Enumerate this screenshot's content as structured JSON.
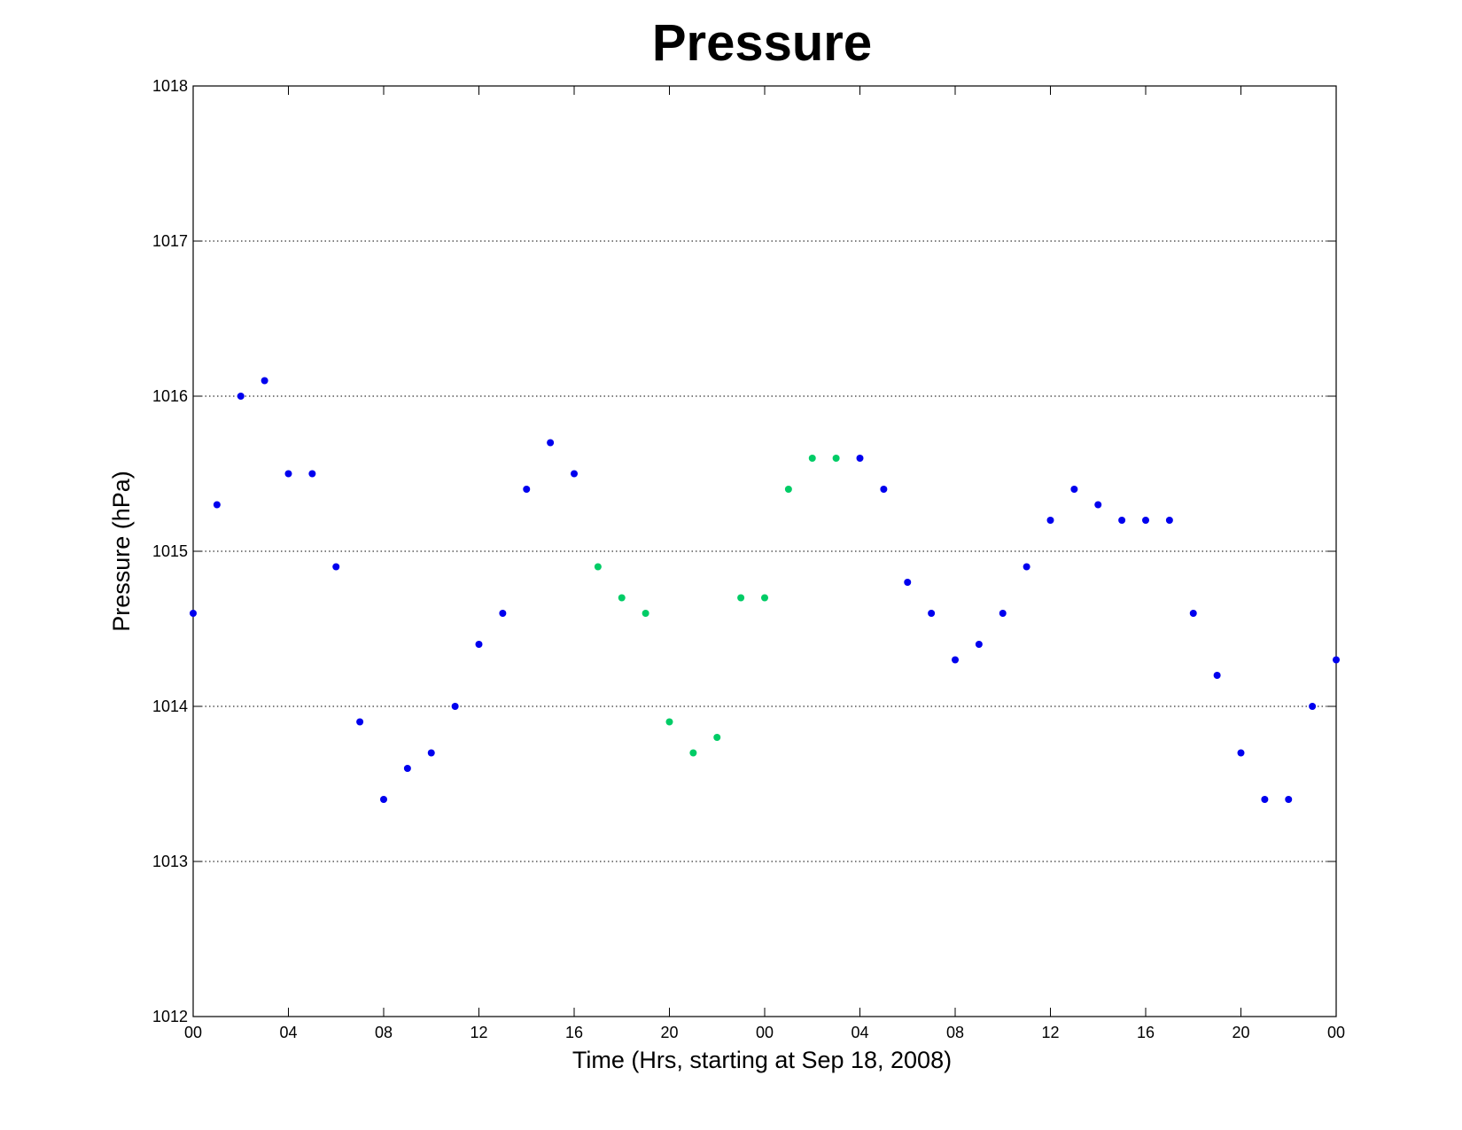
{
  "chart_data": {
    "type": "scatter",
    "title": "Pressure",
    "xlabel": "Time (Hrs, starting at Sep 18, 2008)",
    "ylabel": "Pressure (hPa)",
    "xlim": [
      "2008-09-18 00:00",
      "2008-09-20 00:00"
    ],
    "ylim": [
      1012,
      1018
    ],
    "x_ticks": [
      "00",
      "04",
      "08",
      "12",
      "16",
      "20",
      "00",
      "04",
      "08",
      "12",
      "16",
      "20",
      "00"
    ],
    "y_ticks": [
      "1012",
      "1013",
      "1014",
      "1015",
      "1016",
      "1017",
      "1018"
    ],
    "grid": "horizontal dotted",
    "colors": {
      "blue": "#0000ee",
      "green": "#00cc66"
    },
    "points": [
      {
        "x": "2008-09-18 00:00",
        "y": 1014.6,
        "color": "blue"
      },
      {
        "x": "2008-09-18 01:00",
        "y": 1015.3,
        "color": "blue"
      },
      {
        "x": "2008-09-18 02:00",
        "y": 1016.0,
        "color": "blue"
      },
      {
        "x": "2008-09-18 03:00",
        "y": 1016.1,
        "color": "blue"
      },
      {
        "x": "2008-09-18 04:00",
        "y": 1015.5,
        "color": "blue"
      },
      {
        "x": "2008-09-18 05:00",
        "y": 1015.5,
        "color": "blue"
      },
      {
        "x": "2008-09-18 06:00",
        "y": 1014.9,
        "color": "blue"
      },
      {
        "x": "2008-09-18 07:00",
        "y": 1013.9,
        "color": "blue"
      },
      {
        "x": "2008-09-18 08:00",
        "y": 1013.4,
        "color": "blue"
      },
      {
        "x": "2008-09-18 09:00",
        "y": 1013.6,
        "color": "blue"
      },
      {
        "x": "2008-09-18 10:00",
        "y": 1013.7,
        "color": "blue"
      },
      {
        "x": "2008-09-18 11:00",
        "y": 1014.0,
        "color": "blue"
      },
      {
        "x": "2008-09-18 12:00",
        "y": 1014.4,
        "color": "blue"
      },
      {
        "x": "2008-09-18 13:00",
        "y": 1014.6,
        "color": "blue"
      },
      {
        "x": "2008-09-18 14:00",
        "y": 1015.4,
        "color": "blue"
      },
      {
        "x": "2008-09-18 15:00",
        "y": 1015.7,
        "color": "blue"
      },
      {
        "x": "2008-09-18 16:00",
        "y": 1015.5,
        "color": "blue"
      },
      {
        "x": "2008-09-18 17:00",
        "y": 1014.9,
        "color": "green"
      },
      {
        "x": "2008-09-18 18:00",
        "y": 1014.7,
        "color": "green"
      },
      {
        "x": "2008-09-18 19:00",
        "y": 1014.6,
        "color": "green"
      },
      {
        "x": "2008-09-18 20:00",
        "y": 1013.9,
        "color": "green"
      },
      {
        "x": "2008-09-18 21:00",
        "y": 1013.7,
        "color": "green"
      },
      {
        "x": "2008-09-18 22:00",
        "y": 1013.8,
        "color": "green"
      },
      {
        "x": "2008-09-18 23:00",
        "y": 1014.7,
        "color": "green"
      },
      {
        "x": "2008-09-19 00:00",
        "y": 1014.7,
        "color": "green"
      },
      {
        "x": "2008-09-19 01:00",
        "y": 1015.4,
        "color": "green"
      },
      {
        "x": "2008-09-19 02:00",
        "y": 1015.6,
        "color": "green"
      },
      {
        "x": "2008-09-19 03:00",
        "y": 1015.6,
        "color": "green"
      },
      {
        "x": "2008-09-19 04:00",
        "y": 1015.6,
        "color": "blue"
      },
      {
        "x": "2008-09-19 05:00",
        "y": 1015.4,
        "color": "blue"
      },
      {
        "x": "2008-09-19 06:00",
        "y": 1014.8,
        "color": "blue"
      },
      {
        "x": "2008-09-19 07:00",
        "y": 1014.6,
        "color": "blue"
      },
      {
        "x": "2008-09-19 08:00",
        "y": 1014.3,
        "color": "blue"
      },
      {
        "x": "2008-09-19 09:00",
        "y": 1014.4,
        "color": "blue"
      },
      {
        "x": "2008-09-19 10:00",
        "y": 1014.6,
        "color": "blue"
      },
      {
        "x": "2008-09-19 11:00",
        "y": 1014.9,
        "color": "blue"
      },
      {
        "x": "2008-09-19 12:00",
        "y": 1015.2,
        "color": "blue"
      },
      {
        "x": "2008-09-19 13:00",
        "y": 1015.4,
        "color": "blue"
      },
      {
        "x": "2008-09-19 14:00",
        "y": 1015.3,
        "color": "blue"
      },
      {
        "x": "2008-09-19 15:00",
        "y": 1015.2,
        "color": "blue"
      },
      {
        "x": "2008-09-19 16:00",
        "y": 1015.2,
        "color": "blue"
      },
      {
        "x": "2008-09-19 17:00",
        "y": 1015.2,
        "color": "blue"
      },
      {
        "x": "2008-09-19 18:00",
        "y": 1014.6,
        "color": "blue"
      },
      {
        "x": "2008-09-19 19:00",
        "y": 1014.2,
        "color": "blue"
      },
      {
        "x": "2008-09-19 20:00",
        "y": 1013.7,
        "color": "blue"
      },
      {
        "x": "2008-09-19 21:00",
        "y": 1013.4,
        "color": "blue"
      },
      {
        "x": "2008-09-19 22:00",
        "y": 1013.4,
        "color": "blue"
      },
      {
        "x": "2008-09-19 23:00",
        "y": 1014.0,
        "color": "blue"
      },
      {
        "x": "2008-09-20 00:00",
        "y": 1014.3,
        "color": "blue"
      }
    ]
  }
}
